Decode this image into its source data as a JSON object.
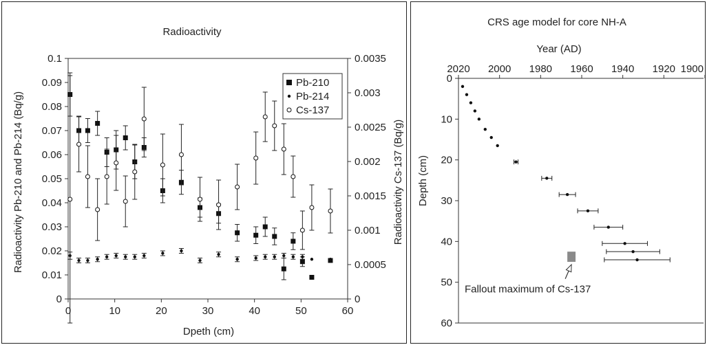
{
  "chart_data": [
    {
      "type": "scatter",
      "title": "Radioactivity",
      "xlabel": "Dpeth (cm)",
      "ylabel": "Radioactivity Pb-210 and Pb-214 (Bq/g)",
      "y2label": "Radioactivity Cs-137 (Bq/g)",
      "xlim": [
        0,
        60
      ],
      "xticks": [
        "0",
        "10",
        "20",
        "30",
        "40",
        "50",
        "60"
      ],
      "ylim": [
        0,
        0.1
      ],
      "yticks": [
        "0",
        "0.01",
        "0.02",
        "0.03",
        "0.04",
        "0.05",
        "0.06",
        "0.07",
        "0.08",
        "0.09",
        "0.1"
      ],
      "y2lim": [
        0,
        0.0035
      ],
      "y2ticks": [
        "0",
        "0.0005",
        "0.001",
        "0.0015",
        "0.002",
        "0.0025",
        "0.003",
        "0.0035"
      ],
      "grid": false,
      "legend_position": "top-right",
      "series": [
        {
          "name": "Pb-210",
          "marker": "square",
          "axis": "left",
          "color": "#111111",
          "points": [
            {
              "x": 0.4,
              "y": 0.085,
              "err": 0.009
            },
            {
              "x": 2.3,
              "y": 0.07,
              "err": 0.006
            },
            {
              "x": 4.2,
              "y": 0.07,
              "err": 0.005
            },
            {
              "x": 6.3,
              "y": 0.073,
              "err": 0.005
            },
            {
              "x": 8.3,
              "y": 0.061,
              "err": 0.006
            },
            {
              "x": 10.3,
              "y": 0.062,
              "err": 0.008
            },
            {
              "x": 12.3,
              "y": 0.067,
              "err": 0.005
            },
            {
              "x": 14.3,
              "y": 0.057,
              "err": 0.007
            },
            {
              "x": 16.3,
              "y": 0.063,
              "err": 0.004
            },
            {
              "x": 20.3,
              "y": 0.045,
              "err": 0.005
            },
            {
              "x": 24.3,
              "y": 0.0485,
              "err": 0.005
            },
            {
              "x": 28.3,
              "y": 0.038,
              "err": 0.004
            },
            {
              "x": 32.3,
              "y": 0.0355,
              "err": 0.004
            },
            {
              "x": 36.3,
              "y": 0.0275,
              "err": 0.0035
            },
            {
              "x": 40.3,
              "y": 0.0265,
              "err": 0.0035
            },
            {
              "x": 42.3,
              "y": 0.03,
              "err": 0.004
            },
            {
              "x": 44.3,
              "y": 0.026,
              "err": 0.0035
            },
            {
              "x": 46.3,
              "y": 0.0125,
              "err": 0.0045
            },
            {
              "x": 48.3,
              "y": 0.024,
              "err": 0.0035
            },
            {
              "x": 50.3,
              "y": 0.0155,
              "err": 0.002
            },
            {
              "x": 52.3,
              "y": 0.009,
              "err": 0
            },
            {
              "x": 56.3,
              "y": 0.016,
              "err": 0
            }
          ]
        },
        {
          "name": "Pb-214",
          "marker": "dot",
          "axis": "left",
          "color": "#111111",
          "points": [
            {
              "x": 0.4,
              "y": 0.018,
              "err": 0.0015
            },
            {
              "x": 2.3,
              "y": 0.016,
              "err": 0.001
            },
            {
              "x": 4.2,
              "y": 0.016,
              "err": 0.001
            },
            {
              "x": 6.3,
              "y": 0.0165,
              "err": 0.001
            },
            {
              "x": 8.3,
              "y": 0.0175,
              "err": 0.001
            },
            {
              "x": 10.3,
              "y": 0.018,
              "err": 0.001
            },
            {
              "x": 12.3,
              "y": 0.0175,
              "err": 0.001
            },
            {
              "x": 14.3,
              "y": 0.0175,
              "err": 0.001
            },
            {
              "x": 16.3,
              "y": 0.018,
              "err": 0.001
            },
            {
              "x": 20.3,
              "y": 0.019,
              "err": 0.001
            },
            {
              "x": 24.3,
              "y": 0.02,
              "err": 0.001
            },
            {
              "x": 28.3,
              "y": 0.016,
              "err": 0.001
            },
            {
              "x": 32.3,
              "y": 0.0185,
              "err": 0.001
            },
            {
              "x": 36.3,
              "y": 0.0165,
              "err": 0.001
            },
            {
              "x": 40.3,
              "y": 0.017,
              "err": 0.001
            },
            {
              "x": 42.3,
              "y": 0.0175,
              "err": 0.001
            },
            {
              "x": 44.3,
              "y": 0.0175,
              "err": 0.001
            },
            {
              "x": 46.3,
              "y": 0.018,
              "err": 0.001
            },
            {
              "x": 48.3,
              "y": 0.0175,
              "err": 0.001
            },
            {
              "x": 50.3,
              "y": 0.0175,
              "err": 0.001
            },
            {
              "x": 52.3,
              "y": 0.0165,
              "err": 0
            },
            {
              "x": 56.3,
              "y": 0.0165,
              "err": 0
            }
          ]
        },
        {
          "name": "Cs-137",
          "marker": "open-circle",
          "axis": "right",
          "color": "#111111",
          "points": [
            {
              "x": 0.4,
              "y": 0.00145,
              "err": 0.0018
            },
            {
              "x": 2.3,
              "y": 0.00225,
              "err": 0.0004
            },
            {
              "x": 4.2,
              "y": 0.00178,
              "err": 0.00045
            },
            {
              "x": 6.3,
              "y": 0.0013,
              "err": 0.00045
            },
            {
              "x": 8.3,
              "y": 0.00178,
              "err": 0.0004
            },
            {
              "x": 10.3,
              "y": 0.00198,
              "err": 0.0004
            },
            {
              "x": 12.3,
              "y": 0.00142,
              "err": 0.00037
            },
            {
              "x": 14.3,
              "y": 0.00185,
              "err": 0.0004
            },
            {
              "x": 16.3,
              "y": 0.00262,
              "err": 0.00046
            },
            {
              "x": 20.3,
              "y": 0.00195,
              "err": 0.00045
            },
            {
              "x": 24.3,
              "y": 0.0021,
              "err": 0.00044
            },
            {
              "x": 28.3,
              "y": 0.00145,
              "err": 0.00032
            },
            {
              "x": 32.3,
              "y": 0.00137,
              "err": 0.00036
            },
            {
              "x": 36.3,
              "y": 0.00163,
              "err": 0.00033
            },
            {
              "x": 40.3,
              "y": 0.00205,
              "err": 0.00038
            },
            {
              "x": 42.3,
              "y": 0.00265,
              "err": 0.00036
            },
            {
              "x": 44.3,
              "y": 0.00252,
              "err": 0.00036
            },
            {
              "x": 46.3,
              "y": 0.00218,
              "err": 0.00037
            },
            {
              "x": 48.3,
              "y": 0.00178,
              "err": 0.0003
            },
            {
              "x": 50.3,
              "y": 0.001,
              "err": 0.00028
            },
            {
              "x": 52.3,
              "y": 0.00133,
              "err": 0.00033
            },
            {
              "x": 56.3,
              "y": 0.00128,
              "err": 0.00032
            }
          ]
        }
      ]
    },
    {
      "type": "scatter",
      "title": "CRS age model for core NH-A",
      "xlabel": "Year (AD)",
      "ylabel": "Depth (cm)",
      "xlim": [
        2020,
        1900
      ],
      "xticks": [
        "2020",
        "2000",
        "1980",
        "1960",
        "1940",
        "1920",
        "1900"
      ],
      "ylim": [
        0,
        60
      ],
      "yticks": [
        "0",
        "10",
        "20",
        "30",
        "40",
        "50",
        "60"
      ],
      "x_axis_position": "top",
      "y_axis_inverted": true,
      "grid": false,
      "points": [
        {
          "year": 2018,
          "depth": 2,
          "err": 0
        },
        {
          "year": 2016,
          "depth": 4,
          "err": 0
        },
        {
          "year": 2014,
          "depth": 6,
          "err": 0
        },
        {
          "year": 2012,
          "depth": 8,
          "err": 0
        },
        {
          "year": 2010,
          "depth": 10,
          "err": 0
        },
        {
          "year": 2007,
          "depth": 12.5,
          "err": 0
        },
        {
          "year": 2004,
          "depth": 14.5,
          "err": 0
        },
        {
          "year": 2001,
          "depth": 16.5,
          "err": 0
        },
        {
          "year": 1992,
          "depth": 20.5,
          "err": 1
        },
        {
          "year": 1977,
          "depth": 24.5,
          "err": 2.5
        },
        {
          "year": 1967,
          "depth": 28.5,
          "err": 4
        },
        {
          "year": 1957,
          "depth": 32.5,
          "err": 5
        },
        {
          "year": 1947,
          "depth": 36.5,
          "err": 7
        },
        {
          "year": 1939,
          "depth": 40.5,
          "err": 11
        },
        {
          "year": 1935,
          "depth": 42.5,
          "err": 13
        },
        {
          "year": 1933,
          "depth": 44.5,
          "err": 16
        }
      ],
      "fallout_bar": {
        "year_from": 1967,
        "year_to": 1963,
        "depth_from": 42.5,
        "depth_to": 45
      },
      "annotation": {
        "text": "Fallout maximum of Cs-137",
        "depth": 49.5,
        "year": 2017,
        "arrow_to_year": 1965,
        "arrow_to_depth": 45
      }
    }
  ]
}
